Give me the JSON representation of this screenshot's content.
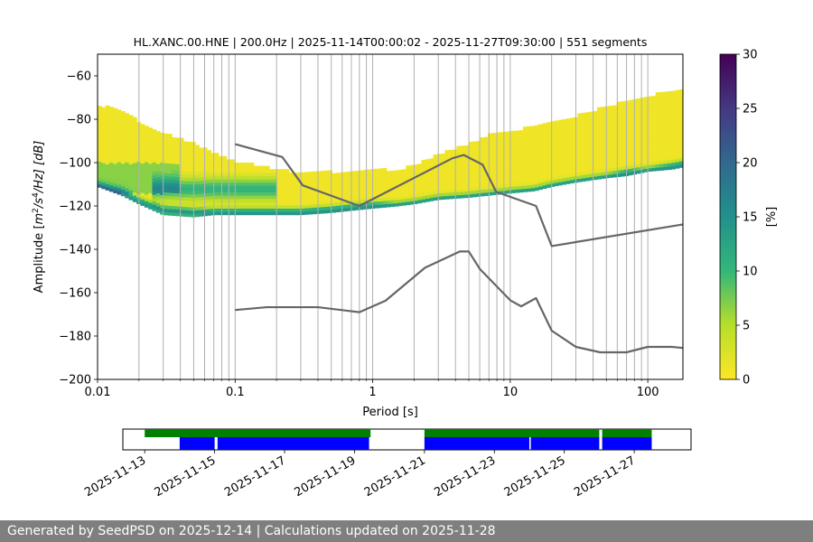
{
  "chart_data": [
    {
      "type": "heatmap",
      "title": "HL.XANC.00.HNE | 200.0Hz | 2025-11-14T00:00:02 - 2025-11-27T09:30:00 | 551 segments",
      "xlabel": "Period [s]",
      "ylabel_pre": "Amplitude [",
      "ylabel_m": "m",
      "ylabel_sup2": "2",
      "ylabel_s": "/s",
      "ylabel_sup4": "4",
      "ylabel_post": "/Hz] [dB]",
      "xscale": "log",
      "xlim": [
        0.01,
        180
      ],
      "ylim": [
        -200,
        -50
      ],
      "x_ticks": [
        {
          "value": 0.01,
          "label": "0.01"
        },
        {
          "value": 0.1,
          "label": "0.1"
        },
        {
          "value": 1,
          "label": "1"
        },
        {
          "value": 10,
          "label": "10"
        },
        {
          "value": 100,
          "label": "100"
        }
      ],
      "y_ticks": [
        {
          "value": -60,
          "label": "−60"
        },
        {
          "value": -80,
          "label": "−80"
        },
        {
          "value": -100,
          "label": "−100"
        },
        {
          "value": -120,
          "label": "−120"
        },
        {
          "value": -140,
          "label": "−140"
        },
        {
          "value": -160,
          "label": "−160"
        },
        {
          "value": -180,
          "label": "−180"
        },
        {
          "value": -200,
          "label": "−200"
        }
      ],
      "grid": "vertical-minor-and-major",
      "colorbar": {
        "label": "[%]",
        "range": [
          0,
          30
        ],
        "ticks": [
          {
            "value": 0,
            "label": "0"
          },
          {
            "value": 5,
            "label": "5"
          },
          {
            "value": 10,
            "label": "10"
          },
          {
            "value": 15,
            "label": "15"
          },
          {
            "value": 20,
            "label": "20"
          },
          {
            "value": 25,
            "label": "25"
          },
          {
            "value": 30,
            "label": "30"
          }
        ],
        "colormap": "viridis_r"
      },
      "density": {
        "periods": [
          0.01,
          0.015,
          0.02,
          0.03,
          0.05,
          0.07,
          0.1,
          0.15,
          0.2,
          0.3,
          0.5,
          0.7,
          1,
          1.5,
          2,
          3,
          5,
          7,
          10,
          15,
          20,
          30,
          50,
          70,
          100,
          150,
          180
        ],
        "upper_db": [
          -74,
          -76,
          -82,
          -87,
          -92,
          -96,
          -100,
          -102,
          -104,
          -105,
          -105,
          -105,
          -104,
          -104,
          -102,
          -97,
          -92,
          -88,
          -86,
          -84,
          -82,
          -79,
          -75,
          -72,
          -70,
          -67,
          -66
        ],
        "lower_db": [
          -111,
          -115,
          -119,
          -124,
          -125,
          -124,
          -124,
          -124,
          -124,
          -124,
          -123,
          -122,
          -121,
          -120,
          -119,
          -117,
          -116,
          -115,
          -114,
          -113,
          -111,
          -109,
          -107,
          -106,
          -104,
          -103,
          -102
        ],
        "peak_db": [
          -111,
          -114,
          -118,
          -122,
          -123,
          -123,
          -123,
          -123,
          -123,
          -123,
          -122,
          -121,
          -120,
          -120,
          -119,
          -117,
          -116,
          -115,
          -114,
          -113,
          -111,
          -109,
          -107,
          -105,
          -104,
          -102,
          -101
        ]
      },
      "series": [
        {
          "name": "",
          "color": "#666666",
          "x": [
            0.1,
            0.22,
            0.31,
            0.8,
            3.8,
            4.6,
            6.3,
            7.9,
            15.4,
            20,
            180
          ],
          "y": [
            -91.5,
            -97.4,
            -110.5,
            -120,
            -98,
            -96.5,
            -101,
            -113.5,
            -120,
            -138.5,
            -128.5
          ]
        },
        {
          "name": "",
          "color": "#666666",
          "x": [
            0.1,
            0.17,
            0.4,
            0.8,
            1.24,
            2.4,
            4.3,
            5.0,
            6.0,
            10,
            12,
            15.4,
            20,
            30,
            45,
            70,
            100,
            150,
            180
          ],
          "y": [
            -168,
            -166.7,
            -166.7,
            -169,
            -163.7,
            -148.5,
            -141,
            -141,
            -149,
            -163.5,
            -166.3,
            -162.5,
            -177.5,
            -185,
            -187.5,
            -187.5,
            -185,
            -185,
            -185.5
          ]
        }
      ]
    },
    {
      "type": "timeline",
      "date_ticks": [
        "2025-11-13",
        "2025-11-15",
        "2025-11-17",
        "2025-11-19",
        "2025-11-21",
        "2025-11-23",
        "2025-11-25",
        "2025-11-27"
      ],
      "date_range": [
        "2025-11-12T09:00",
        "2025-11-28T15:00"
      ],
      "tracks": [
        {
          "name": "",
          "color": "#008000",
          "segments": [
            [
              "2025-11-13T00:00",
              "2025-11-19T11:00"
            ],
            [
              "2025-11-21T00:00",
              "2025-11-26T00:00"
            ],
            [
              "2025-11-26T02:00",
              "2025-11-27T12:00"
            ]
          ]
        },
        {
          "name": "",
          "color": "#0000ff",
          "segments": [
            [
              "2025-11-14T00:00",
              "2025-11-15T00:00"
            ],
            [
              "2025-11-15T02:00",
              "2025-11-19T10:00"
            ],
            [
              "2025-11-21T00:00",
              "2025-11-24T00:00"
            ],
            [
              "2025-11-24T01:00",
              "2025-11-26T00:00"
            ],
            [
              "2025-11-26T02:00",
              "2025-11-27T12:00"
            ]
          ]
        }
      ]
    }
  ],
  "footer": {
    "text": "Generated by SeedPSD on 2025-12-14 | Calculations updated on 2025-11-28"
  }
}
